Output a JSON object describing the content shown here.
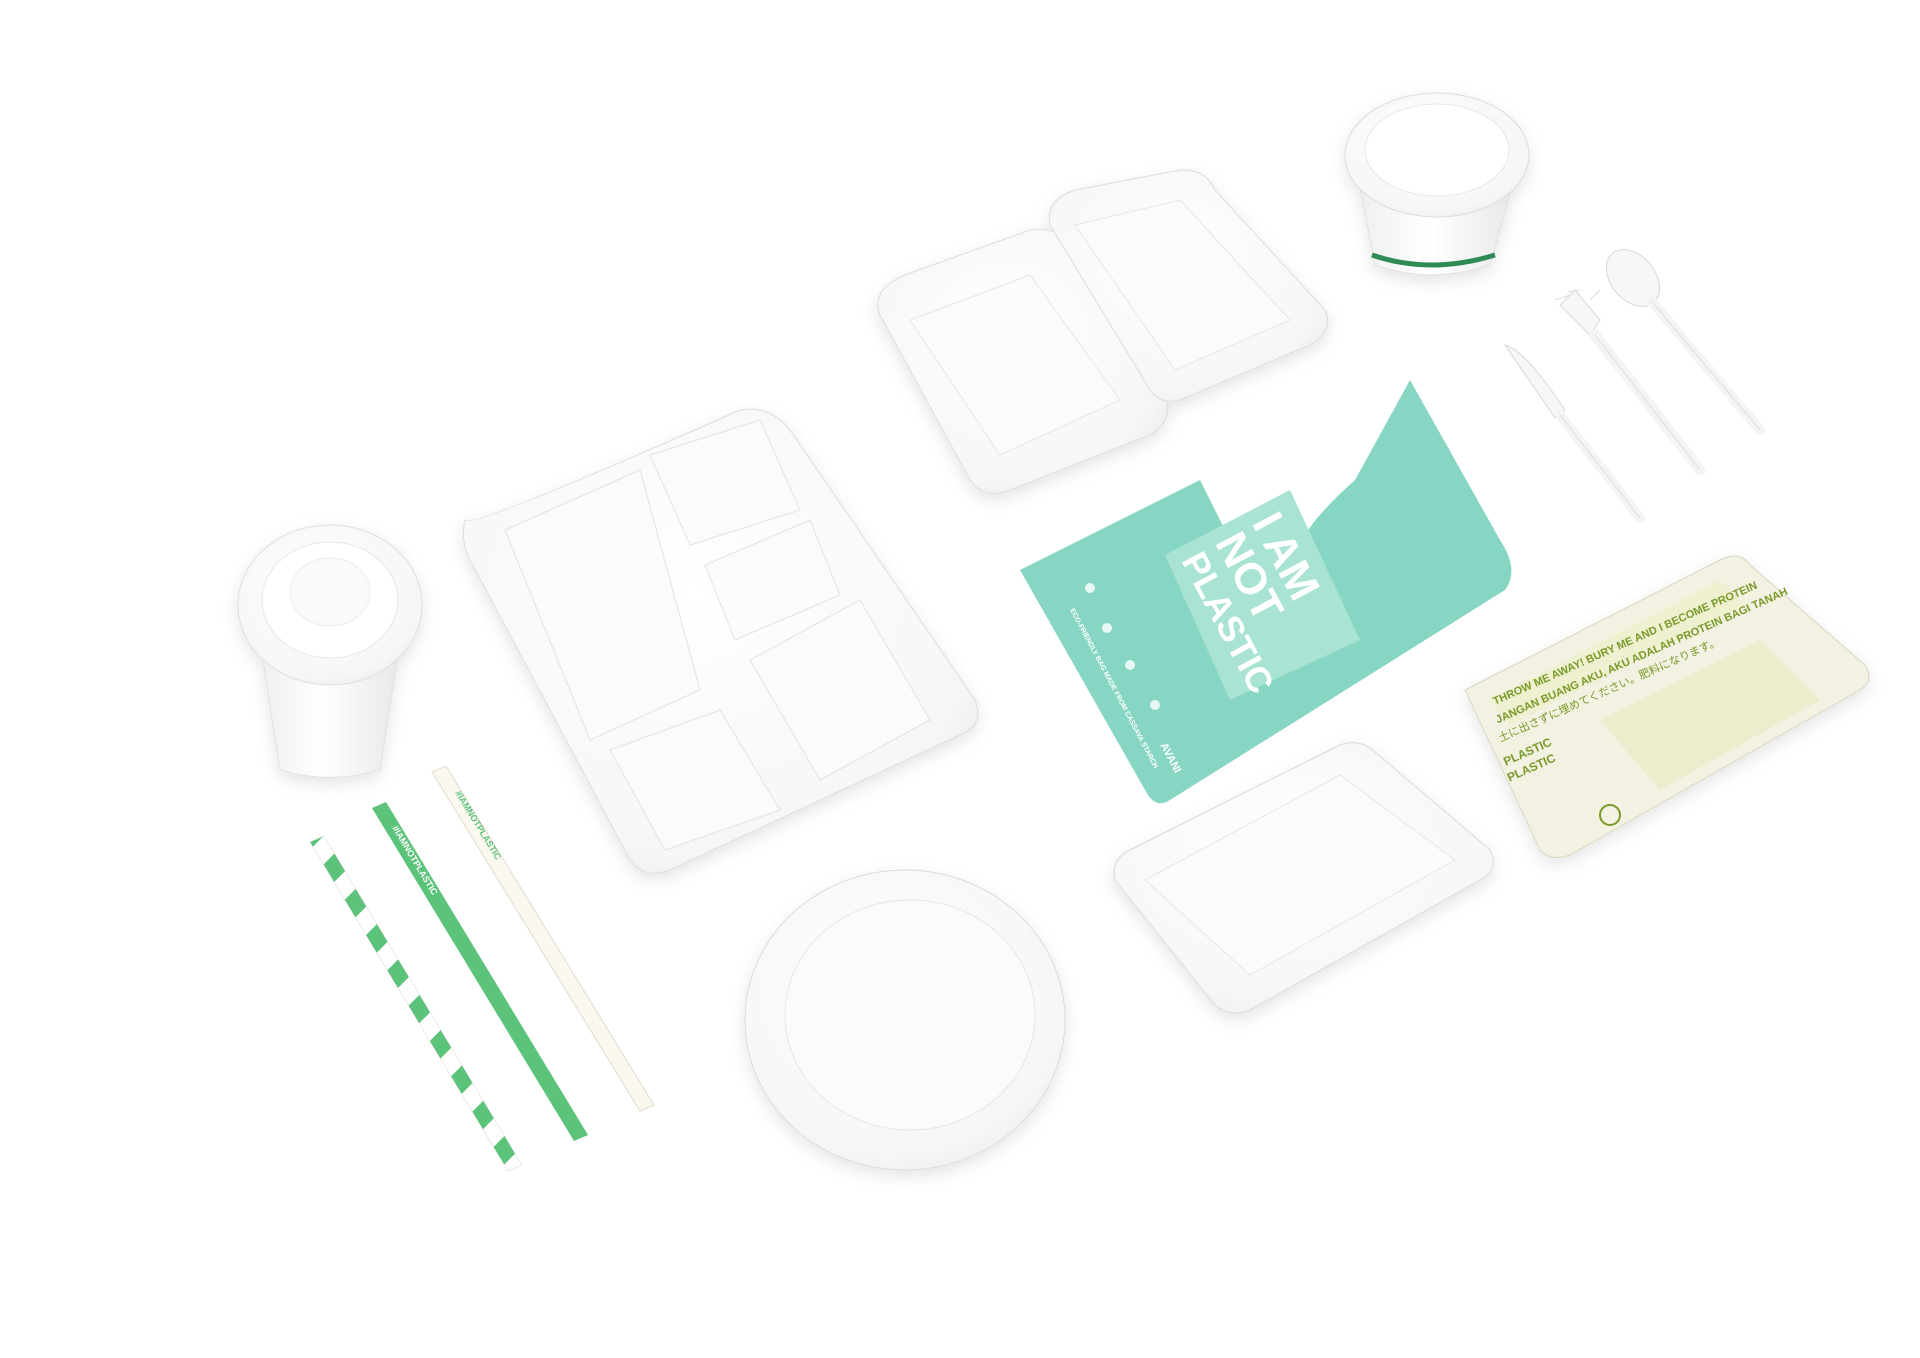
{
  "bag": {
    "line1": "I AM",
    "line2": "NOT",
    "line3": "PLASTIC",
    "tagline": "ECO-FRIENDLY BAG MADE FROM CASSAVA STARCH",
    "brand": "AVANI",
    "color": "#7dd3bf"
  },
  "pack": {
    "line1": "THROW ME AWAY! BURY ME AND I BECOME PROTEIN",
    "line2": "JANGAN BUANG AKU, AKU ADALAH PROTEIN BAGI TANAH",
    "line3": "土に出さずに埋めてください。肥料になります。",
    "line4": "PLASTIC",
    "line5": "PLASTIC"
  },
  "straws": {
    "green_text": "#IAMNOTPLASTIC",
    "white_text": "#IAMNOTPLASTIC",
    "stripe_color": "#5cc37a"
  },
  "cup_band_color": "#2e8b57"
}
